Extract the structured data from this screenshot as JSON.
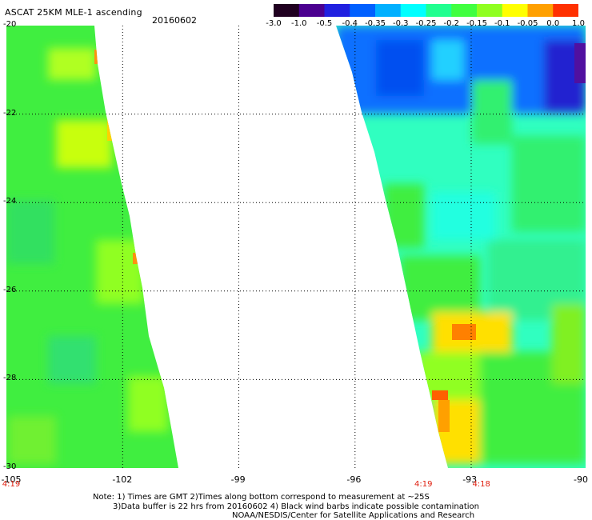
{
  "header": {
    "title": "ASCAT 25KM MLE-1 ascending",
    "date": "20160602"
  },
  "colorbar": {
    "labels": [
      "-3.0",
      "-1.0",
      "-0.5",
      "-0.4",
      "-0.35",
      "-0.3",
      "-0.25",
      "-0.2",
      "-0.15",
      "-0.1",
      "-0.05",
      "0.0",
      "1.0"
    ],
    "colors": [
      "#200020",
      "#4b0090",
      "#2020e0",
      "#0060ff",
      "#00b0ff",
      "#00ffff",
      "#20ff90",
      "#40ff40",
      "#90ff20",
      "#ffff00",
      "#ffa000",
      "#ff3000"
    ]
  },
  "axes": {
    "x_ticks": [
      "-105",
      "-102",
      "-99",
      "-96",
      "-93",
      "-90"
    ],
    "y_ticks": [
      "-20",
      "-22",
      "-24",
      "-26",
      "-28",
      "-30"
    ],
    "lon_range": [
      -105,
      -90
    ],
    "lat_range": [
      -20,
      -30
    ]
  },
  "pass_times": [
    {
      "label": "4:19",
      "lon": -105
    },
    {
      "label": "4:19",
      "lon": -94.2
    },
    {
      "label": "4:18",
      "lon": -92.7
    }
  ],
  "notes": [
    "Note: 1) Times are GMT 2)Times along bottom correspond to measurement at ~25S",
    "3)Data buffer is 22 hrs from 20160602 4) Black wind barbs indicate possible contamination",
    "NOAA/NESDIS/Center for Satellite Applications and Research"
  ]
}
